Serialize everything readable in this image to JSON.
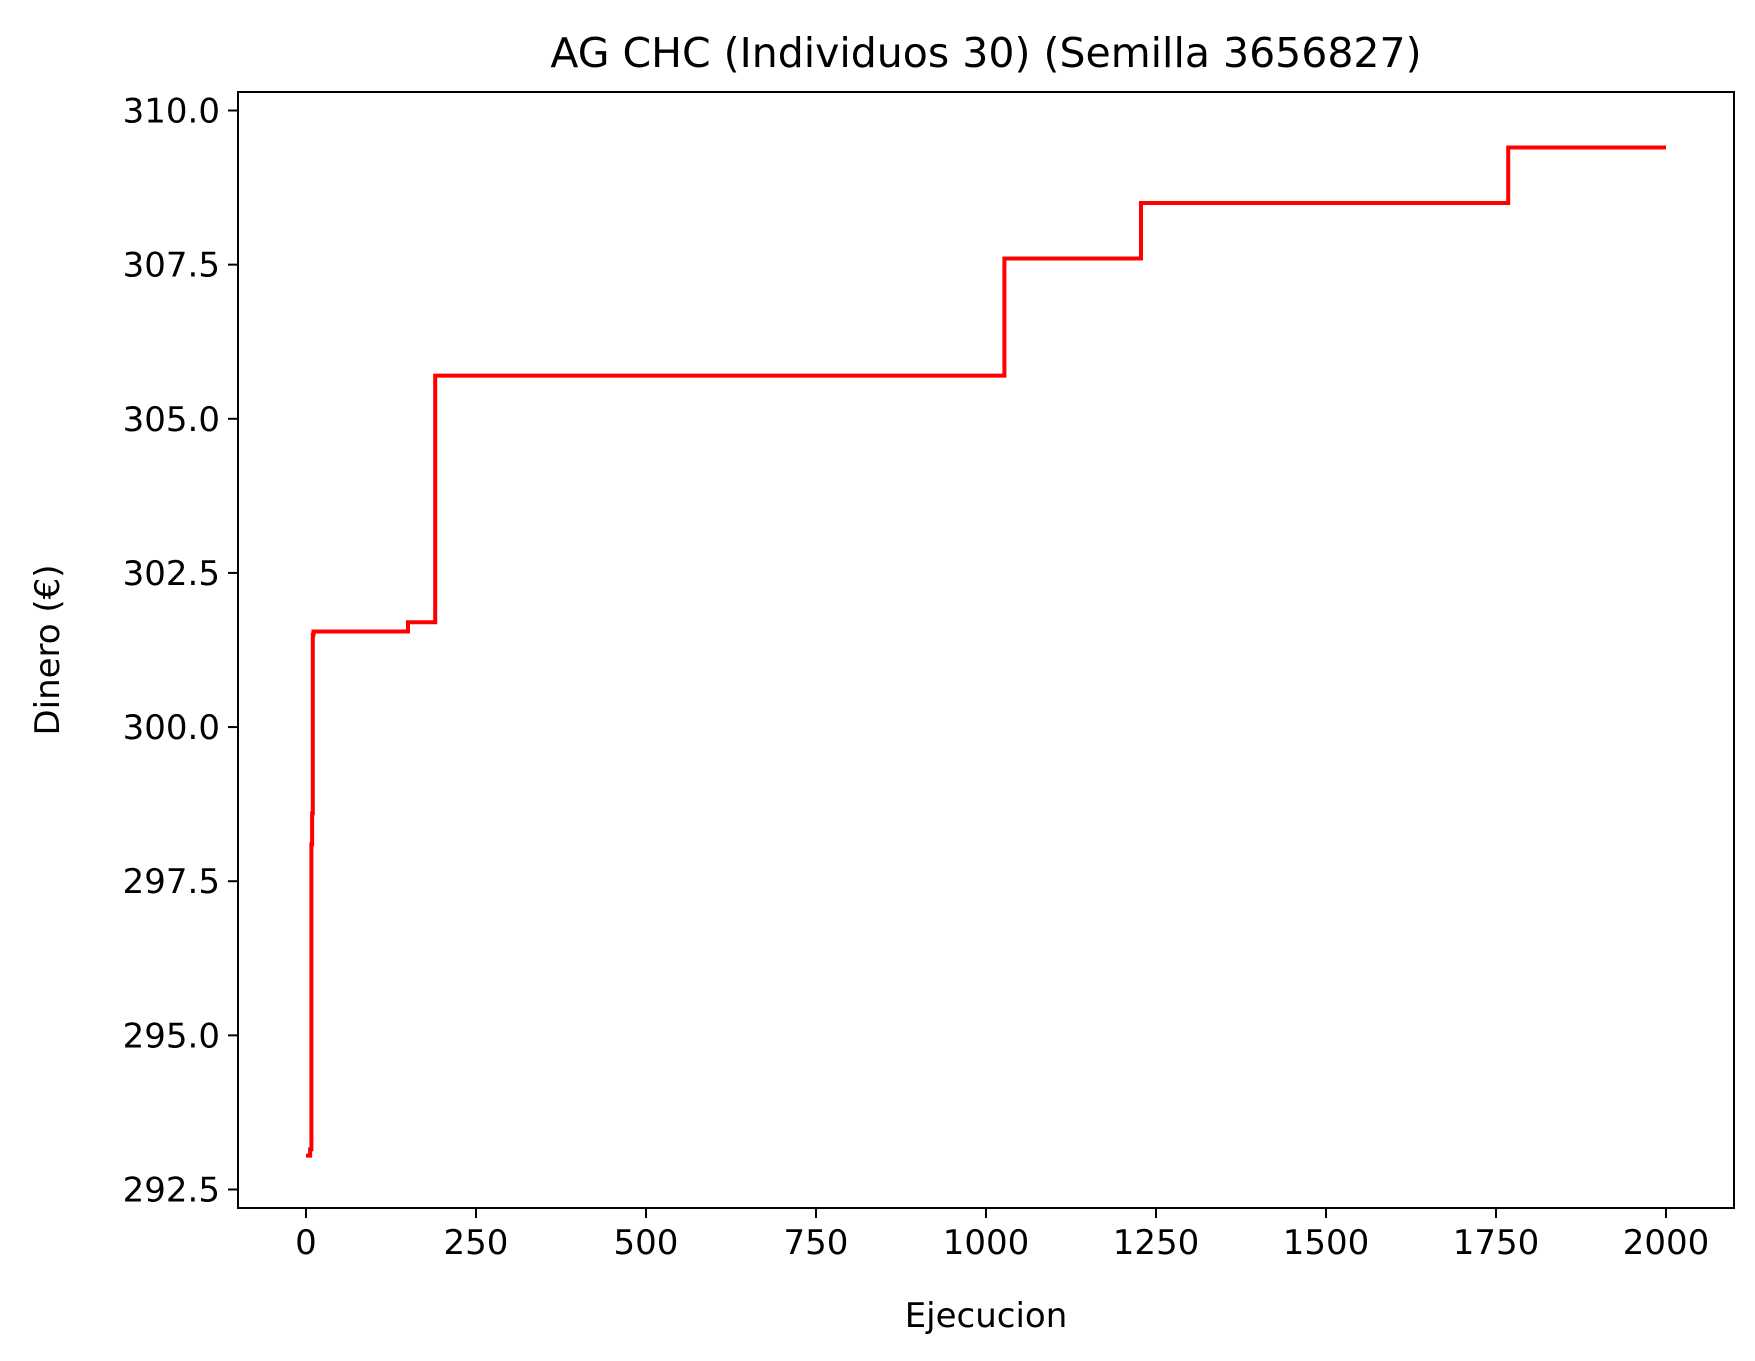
{
  "chart_data": {
    "type": "line",
    "title": "AG CHC (Individuos 30) (Semilla 3656827)",
    "xlabel": "Ejecucion",
    "ylabel": "Dinero (€)",
    "xlim": [
      -100,
      2100
    ],
    "ylim": [
      292.2,
      310.3
    ],
    "xticks": [
      0,
      250,
      500,
      750,
      1000,
      1250,
      1500,
      1750,
      2000
    ],
    "xtick_labels": [
      "0",
      "250",
      "500",
      "750",
      "1000",
      "1250",
      "1500",
      "1750",
      "2000"
    ],
    "yticks": [
      292.5,
      295.0,
      297.5,
      300.0,
      302.5,
      305.0,
      307.5,
      310.0
    ],
    "ytick_labels": [
      "292.5",
      "295.0",
      "297.5",
      "300.0",
      "302.5",
      "305.0",
      "307.5",
      "310.0"
    ],
    "grid": false,
    "legend": false,
    "series": [
      {
        "color": "#ff0000",
        "step": "post",
        "x": [
          0,
          6,
          8,
          9,
          10,
          11,
          150,
          190,
          1027,
          1228,
          1768,
          2000
        ],
        "y": [
          293.05,
          293.15,
          298.1,
          298.6,
          301.5,
          301.55,
          301.7,
          305.7,
          307.6,
          308.5,
          309.4,
          309.4
        ]
      }
    ]
  }
}
